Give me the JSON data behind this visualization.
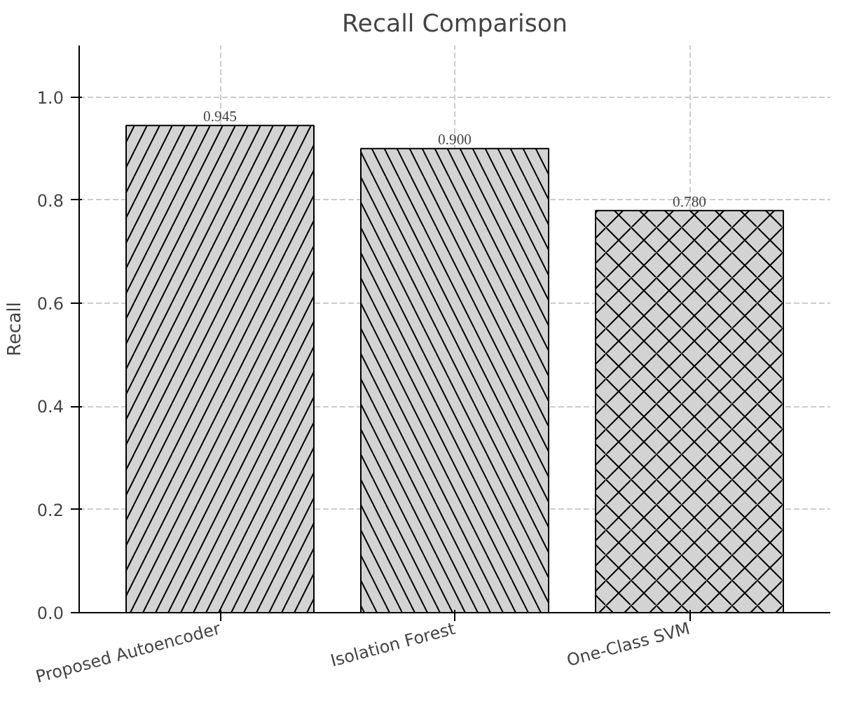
{
  "chart_data": {
    "type": "bar",
    "title": "Recall Comparison",
    "ylabel": "Recall",
    "categories": [
      "Proposed Autoencoder",
      "Isolation Forest",
      "One-Class SVM"
    ],
    "values": [
      0.945,
      0.9,
      0.78
    ],
    "value_labels": [
      "0.945",
      "0.900",
      "0.780"
    ],
    "color": "#d3d3d3",
    "ylim": [
      0,
      1.1
    ],
    "yticks": [
      {
        "value": 0,
        "label": "0.0"
      },
      {
        "value": 0.2,
        "label": "0.2"
      },
      {
        "value": 0.4,
        "label": "0.4"
      },
      {
        "value": 0.6,
        "label": "0.6"
      },
      {
        "value": 0.8,
        "label": "0.8"
      },
      {
        "value": 1.0,
        "label": "1.0"
      }
    ],
    "grid": true
  }
}
